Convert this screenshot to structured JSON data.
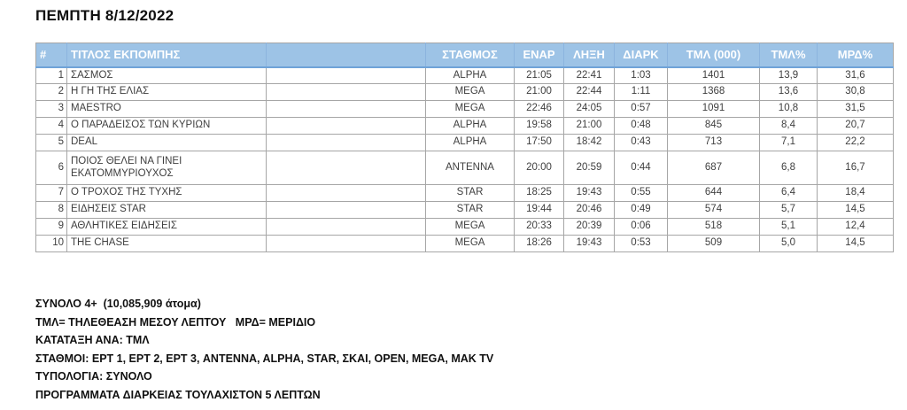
{
  "page": {
    "title": "ΠΕΜΠΤΗ 8/12/2022"
  },
  "colors": {
    "header_bg": "#9dc3e6",
    "header_text": "#ffffff",
    "header_bottom_border": "#6fa3d8",
    "grid_border": "#a6a6a6",
    "body_text": "#3f3f3f"
  },
  "table": {
    "headers": {
      "rank": "#",
      "title": "ΤΙΤΛΟΣ ΕΚΠΟΜΠΗΣ",
      "spacer": "",
      "station": "ΣΤΑΘΜΟΣ",
      "start": "ΕΝΑΡ",
      "end": "ΛΗΞΗ",
      "duration": "ΔΙΑΡΚ",
      "tml000": "ΤΜΛ (000)",
      "tml_pct": "ΤΜΛ%",
      "mrd_pct": "ΜΡΔ%"
    },
    "rows": [
      {
        "rank": "1",
        "title": "ΣΑΣΜΟΣ",
        "station": "ALPHA",
        "start": "21:05",
        "end": "22:41",
        "duration": "1:03",
        "tml000": "1401",
        "tml_pct": "13,9",
        "mrd_pct": "31,6"
      },
      {
        "rank": "2",
        "title": "Η ΓΗ ΤΗΣ ΕΛΙΑΣ",
        "station": "MEGA",
        "start": "21:00",
        "end": "22:44",
        "duration": "1:11",
        "tml000": "1368",
        "tml_pct": "13,6",
        "mrd_pct": "30,8"
      },
      {
        "rank": "3",
        "title": "MAESTRO",
        "station": "MEGA",
        "start": "22:46",
        "end": "24:05",
        "duration": "0:57",
        "tml000": "1091",
        "tml_pct": "10,8",
        "mrd_pct": "31,5"
      },
      {
        "rank": "4",
        "title": "Ο ΠΑΡΑΔΕΙΣΟΣ ΤΩΝ ΚΥΡΙΩΝ",
        "station": "ALPHA",
        "start": "19:58",
        "end": "21:00",
        "duration": "0:48",
        "tml000": "845",
        "tml_pct": "8,4",
        "mrd_pct": "20,7"
      },
      {
        "rank": "5",
        "title": "DEAL",
        "station": "ALPHA",
        "start": "17:50",
        "end": "18:42",
        "duration": "0:43",
        "tml000": "713",
        "tml_pct": "7,1",
        "mrd_pct": "22,2"
      },
      {
        "rank": "6",
        "title": "ΠΟΙΟΣ ΘΕΛΕΙ ΝΑ ΓΙΝΕΙ ΕΚΑΤΟΜΜΥΡΙΟΥΧΟΣ",
        "station": "ANTENNA",
        "start": "20:00",
        "end": "20:59",
        "duration": "0:44",
        "tml000": "687",
        "tml_pct": "6,8",
        "mrd_pct": "16,7"
      },
      {
        "rank": "7",
        "title": "Ο ΤΡΟΧΟΣ ΤΗΣ ΤΥΧΗΣ",
        "station": "STAR",
        "start": "18:25",
        "end": "19:43",
        "duration": "0:55",
        "tml000": "644",
        "tml_pct": "6,4",
        "mrd_pct": "18,4"
      },
      {
        "rank": "8",
        "title": "ΕΙΔΗΣΕΙΣ STAR",
        "station": "STAR",
        "start": "19:44",
        "end": "20:46",
        "duration": "0:49",
        "tml000": "574",
        "tml_pct": "5,7",
        "mrd_pct": "14,5"
      },
      {
        "rank": "9",
        "title": "ΑΘΛΗΤΙΚΕΣ ΕΙΔΗΣΕΙΣ",
        "station": "MEGA",
        "start": "20:33",
        "end": "20:39",
        "duration": "0:06",
        "tml000": "518",
        "tml_pct": "5,1",
        "mrd_pct": "12,4"
      },
      {
        "rank": "10",
        "title": "THE CHASE",
        "station": "MEGA",
        "start": "18:26",
        "end": "19:43",
        "duration": "0:53",
        "tml000": "509",
        "tml_pct": "5,0",
        "mrd_pct": "14,5"
      }
    ]
  },
  "footer": {
    "lines": [
      "ΣΥΝΟΛΟ 4+  (10,085,909 άτομα)",
      "ΤΜΛ= ΤΗΛΕΘΕΑΣΗ ΜΕΣΟΥ ΛΕΠΤΟΥ   ΜΡΔ= ΜΕΡΙΔΙΟ",
      "ΚΑΤΑΤΑΞΗ ΑΝΑ: ΤΜΛ",
      "ΣΤΑΘΜΟΙ: ΕΡΤ 1, ΕΡΤ 2, ΕΡΤ 3, ANTENNA, ALPHA, STAR, ΣΚΑΙ, OPEN, MEGA, MAK TV",
      "ΤΥΠΟΛΟΓΙΑ: ΣΥΝΟΛΟ",
      "ΠΡΟΓΡΑΜΜΑΤΑ ΔΙΑΡΚΕΙΑΣ ΤΟΥΛΑΧΙΣΤΟΝ 5 ΛΕΠΤΩΝ"
    ]
  }
}
